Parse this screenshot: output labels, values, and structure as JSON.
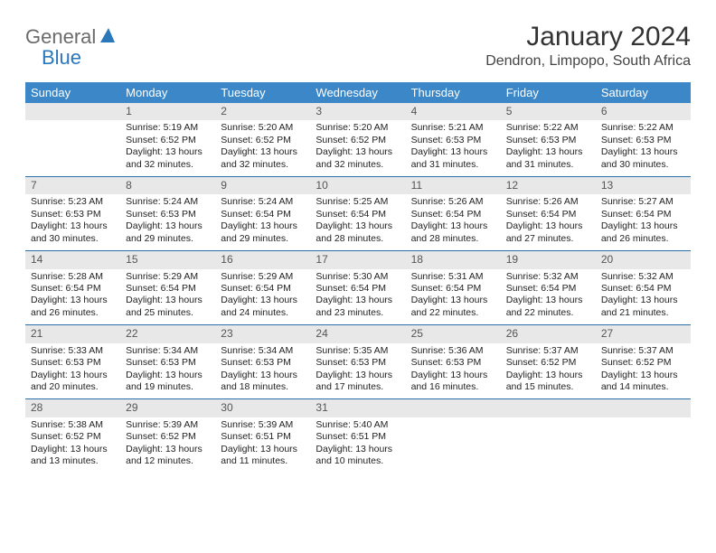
{
  "brand": {
    "part1": "General",
    "part2": "Blue"
  },
  "title": "January 2024",
  "location": "Dendron, Limpopo, South Africa",
  "colors": {
    "header_bg": "#3b87c8",
    "header_text": "#ffffff",
    "daynum_bg": "#e8e8e8",
    "rule": "#2a6fa8",
    "logo_gray": "#6b6b6b",
    "logo_blue": "#2a77ba",
    "page_bg": "#ffffff"
  },
  "typography": {
    "title_fontsize_pt": 22,
    "location_fontsize_pt": 12,
    "weekday_fontsize_pt": 10,
    "cell_fontsize_pt": 8
  },
  "weekdays": [
    "Sunday",
    "Monday",
    "Tuesday",
    "Wednesday",
    "Thursday",
    "Friday",
    "Saturday"
  ],
  "weeks": [
    [
      null,
      {
        "n": "1",
        "sr": "5:19 AM",
        "ss": "6:52 PM",
        "dl": "13 hours and 32 minutes."
      },
      {
        "n": "2",
        "sr": "5:20 AM",
        "ss": "6:52 PM",
        "dl": "13 hours and 32 minutes."
      },
      {
        "n": "3",
        "sr": "5:20 AM",
        "ss": "6:52 PM",
        "dl": "13 hours and 32 minutes."
      },
      {
        "n": "4",
        "sr": "5:21 AM",
        "ss": "6:53 PM",
        "dl": "13 hours and 31 minutes."
      },
      {
        "n": "5",
        "sr": "5:22 AM",
        "ss": "6:53 PM",
        "dl": "13 hours and 31 minutes."
      },
      {
        "n": "6",
        "sr": "5:22 AM",
        "ss": "6:53 PM",
        "dl": "13 hours and 30 minutes."
      }
    ],
    [
      {
        "n": "7",
        "sr": "5:23 AM",
        "ss": "6:53 PM",
        "dl": "13 hours and 30 minutes."
      },
      {
        "n": "8",
        "sr": "5:24 AM",
        "ss": "6:53 PM",
        "dl": "13 hours and 29 minutes."
      },
      {
        "n": "9",
        "sr": "5:24 AM",
        "ss": "6:54 PM",
        "dl": "13 hours and 29 minutes."
      },
      {
        "n": "10",
        "sr": "5:25 AM",
        "ss": "6:54 PM",
        "dl": "13 hours and 28 minutes."
      },
      {
        "n": "11",
        "sr": "5:26 AM",
        "ss": "6:54 PM",
        "dl": "13 hours and 28 minutes."
      },
      {
        "n": "12",
        "sr": "5:26 AM",
        "ss": "6:54 PM",
        "dl": "13 hours and 27 minutes."
      },
      {
        "n": "13",
        "sr": "5:27 AM",
        "ss": "6:54 PM",
        "dl": "13 hours and 26 minutes."
      }
    ],
    [
      {
        "n": "14",
        "sr": "5:28 AM",
        "ss": "6:54 PM",
        "dl": "13 hours and 26 minutes."
      },
      {
        "n": "15",
        "sr": "5:29 AM",
        "ss": "6:54 PM",
        "dl": "13 hours and 25 minutes."
      },
      {
        "n": "16",
        "sr": "5:29 AM",
        "ss": "6:54 PM",
        "dl": "13 hours and 24 minutes."
      },
      {
        "n": "17",
        "sr": "5:30 AM",
        "ss": "6:54 PM",
        "dl": "13 hours and 23 minutes."
      },
      {
        "n": "18",
        "sr": "5:31 AM",
        "ss": "6:54 PM",
        "dl": "13 hours and 22 minutes."
      },
      {
        "n": "19",
        "sr": "5:32 AM",
        "ss": "6:54 PM",
        "dl": "13 hours and 22 minutes."
      },
      {
        "n": "20",
        "sr": "5:32 AM",
        "ss": "6:54 PM",
        "dl": "13 hours and 21 minutes."
      }
    ],
    [
      {
        "n": "21",
        "sr": "5:33 AM",
        "ss": "6:53 PM",
        "dl": "13 hours and 20 minutes."
      },
      {
        "n": "22",
        "sr": "5:34 AM",
        "ss": "6:53 PM",
        "dl": "13 hours and 19 minutes."
      },
      {
        "n": "23",
        "sr": "5:34 AM",
        "ss": "6:53 PM",
        "dl": "13 hours and 18 minutes."
      },
      {
        "n": "24",
        "sr": "5:35 AM",
        "ss": "6:53 PM",
        "dl": "13 hours and 17 minutes."
      },
      {
        "n": "25",
        "sr": "5:36 AM",
        "ss": "6:53 PM",
        "dl": "13 hours and 16 minutes."
      },
      {
        "n": "26",
        "sr": "5:37 AM",
        "ss": "6:52 PM",
        "dl": "13 hours and 15 minutes."
      },
      {
        "n": "27",
        "sr": "5:37 AM",
        "ss": "6:52 PM",
        "dl": "13 hours and 14 minutes."
      }
    ],
    [
      {
        "n": "28",
        "sr": "5:38 AM",
        "ss": "6:52 PM",
        "dl": "13 hours and 13 minutes."
      },
      {
        "n": "29",
        "sr": "5:39 AM",
        "ss": "6:52 PM",
        "dl": "13 hours and 12 minutes."
      },
      {
        "n": "30",
        "sr": "5:39 AM",
        "ss": "6:51 PM",
        "dl": "13 hours and 11 minutes."
      },
      {
        "n": "31",
        "sr": "5:40 AM",
        "ss": "6:51 PM",
        "dl": "13 hours and 10 minutes."
      },
      null,
      null,
      null
    ]
  ],
  "labels": {
    "sunrise": "Sunrise:",
    "sunset": "Sunset:",
    "daylight": "Daylight:"
  }
}
